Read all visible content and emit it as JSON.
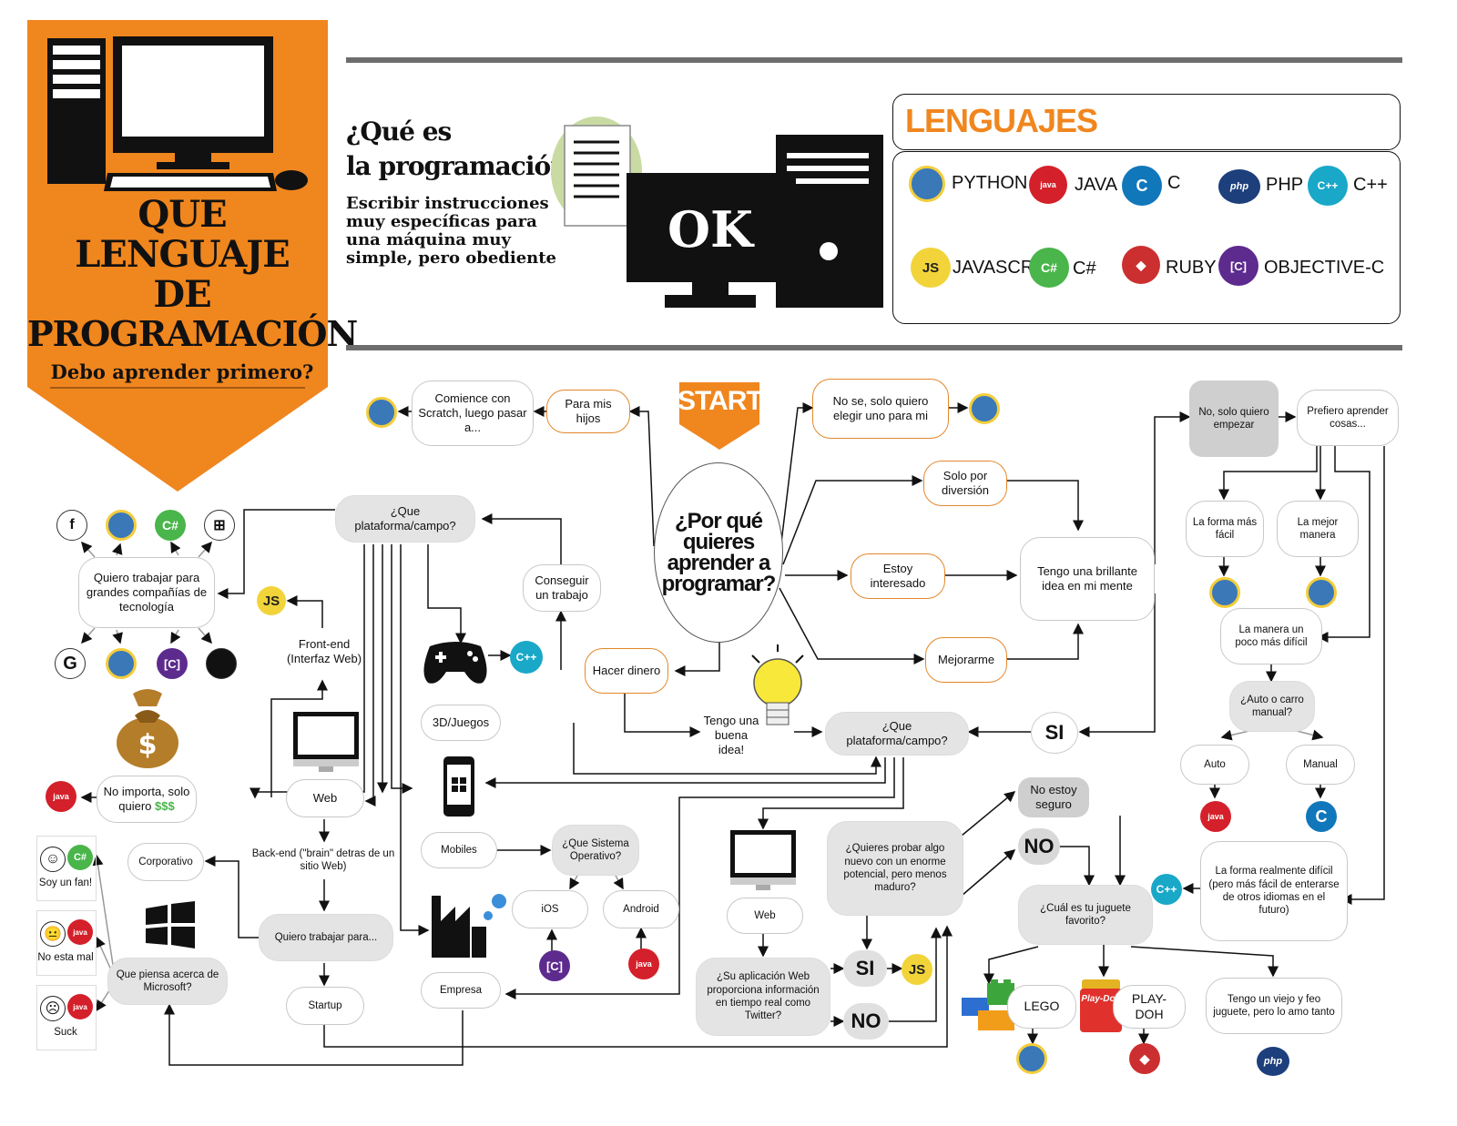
{
  "title": {
    "line1": "QUE",
    "line2": "LENGUAJE",
    "line3": "DE",
    "line4": "PROGRAMACIÓN",
    "subtitle": "Debo aprender primero?"
  },
  "intro": {
    "heading_line1": "¿Qué es",
    "heading_line2": "la programación?",
    "body_line1": "Escribir instrucciones",
    "body_line2": "muy específicas para",
    "body_line3": "una máquina muy",
    "body_line4": "simple, pero obediente",
    "ok_text": "OK"
  },
  "languages": {
    "heading": "LENGUAJES",
    "items": [
      {
        "label": "PYTHON",
        "icon": "python-icon"
      },
      {
        "label": "JAVA",
        "icon": "java-icon"
      },
      {
        "label": "C",
        "icon": "c-icon"
      },
      {
        "label": "PHP",
        "icon": "php-icon"
      },
      {
        "label": "C++",
        "icon": "cpp-icon"
      },
      {
        "label": "JAVASCRIT",
        "icon": "javascript-icon"
      },
      {
        "label": "C#",
        "icon": "csharp-icon"
      },
      {
        "label": "RUBY",
        "icon": "ruby-icon"
      },
      {
        "label": "OBJECTIVE-C",
        "icon": "objective-c-icon"
      }
    ]
  },
  "icon_text": {
    "js": "JS",
    "c": "C",
    "cpp": "C++",
    "csharp": "C#",
    "php": "php",
    "java": "java",
    "objc": "[C]",
    "ruby": "◆",
    "facebook": "f",
    "google": "G",
    "windows": "⊞",
    "apple": ""
  },
  "flow": {
    "start": "START",
    "why": "¿Por qué quieres aprender a programar?",
    "kids": "Para mis hijos",
    "scratch": "Comience con Scratch, luego pasar a...",
    "no_se": "No se, solo quiero elegir uno para mi",
    "diversion": "Solo por diversión",
    "interesado": "Estoy interesado",
    "mejorarme": "Mejorarme",
    "idea_brillante": "Tengo una brillante idea en mi mente",
    "conseguir": "Conseguir un trabajo",
    "dinero": "Hacer dinero",
    "buena_idea": "Tengo una buena idea!",
    "plataforma_left": "¿Que plataforma/campo?",
    "plataforma_mid": "¿Que plataforma/campo?",
    "si_1": "SI",
    "companias": "Quiero trabajar para grandes compañías de tecnología",
    "no_importa": "No importa, solo quiero",
    "money": "$$$",
    "frontend": "Front-end (Interfaz Web)",
    "web_left": "Web",
    "backend": "Back-end (\"brain\" detras de un sitio Web)",
    "trabajar_para": "Quiero trabajar para...",
    "corporativo": "Corporativo",
    "startup": "Startup",
    "microsoft": "Que piensa acerca de Microsoft?",
    "fan": "Soy un fan!",
    "no_mal": "No esta mal",
    "suck": "Suck",
    "juegos": "3D/Juegos",
    "mobiles": "Mobiles",
    "sistema": "¿Que Sistema Operativo?",
    "ios": "iOS",
    "android": "Android",
    "empresa": "Empresa",
    "web_mid": "Web",
    "twitter": "¿Su aplicación Web proporciona información en tiempo real como Twitter?",
    "si_2": "SI",
    "no_2": "NO",
    "probar": "¿Quieres probar algo nuevo con un enorme potencial, pero menos maduro?",
    "no_seguro": "No estoy seguro",
    "no_3": "NO",
    "juguete": "¿Cuál es tu juguete favorito?",
    "lego": "LEGO",
    "playdoh": "PLAY-DOH",
    "viejo": "Tengo un viejo y feo juguete, pero lo amo tanto",
    "solo_empezar": "No, solo quiero empezar",
    "prefiero": "Prefiero aprender cosas...",
    "facil": "La forma más fácil",
    "mejor": "La mejor manera",
    "poco_dificil": "La manera un poco más difícil",
    "auto_carro": "¿Auto o carro manual?",
    "auto": "Auto",
    "manual": "Manual",
    "dificil": "La forma realmente difícil (pero más fácil de enterarse de otros idiomas en el futuro)",
    "playdoh_logo": "Play-Doh"
  },
  "colors": {
    "orange": "#f0861e",
    "dark_gray_rule": "#6d6d6d",
    "node_gray": "#e4e4e4"
  }
}
